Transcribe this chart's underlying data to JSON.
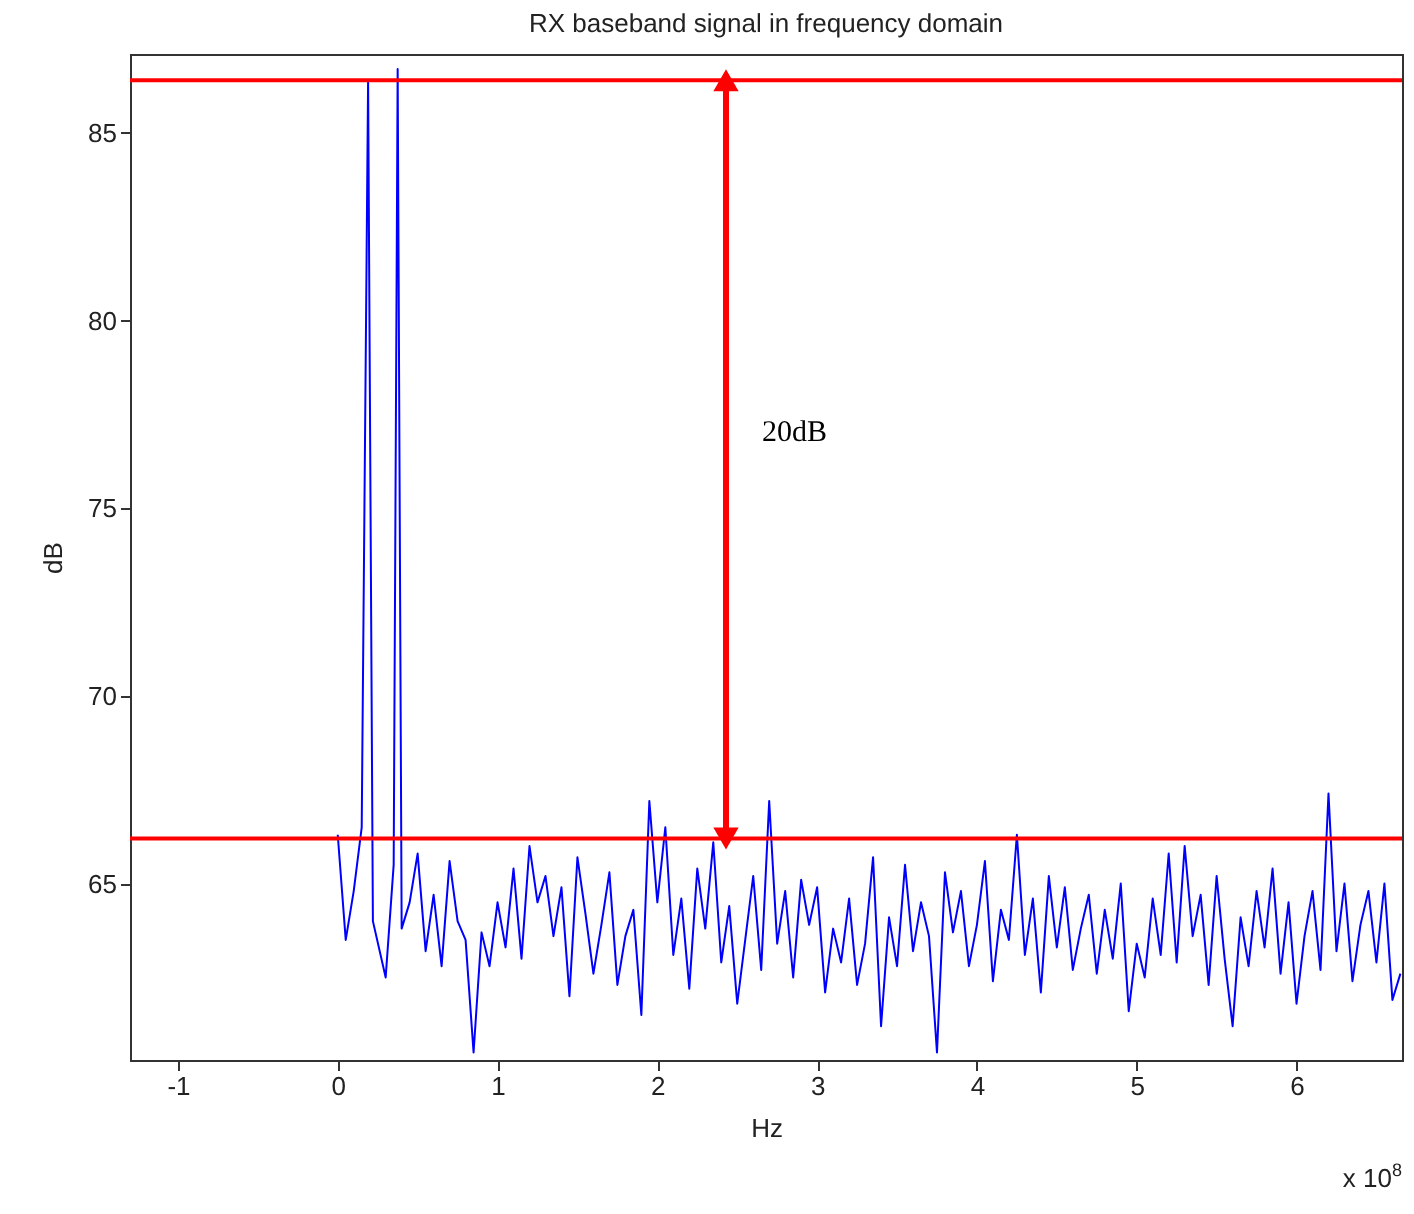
{
  "chart_data": {
    "type": "line",
    "title": "RX baseband signal in frequency domain",
    "xlabel": "Hz",
    "ylabel": "dB",
    "xlim": [
      -1.3,
      6.66
    ],
    "xticks": [
      -1,
      0,
      1,
      2,
      3,
      4,
      5,
      6
    ],
    "ylim": [
      60.3,
      87.1
    ],
    "yticks": [
      65,
      70,
      75,
      80,
      85
    ],
    "grid": false,
    "marker": "none",
    "line_style": "solid",
    "ref_lines": [
      {
        "axis": "y",
        "value": 86.4,
        "color": "#ff0000"
      },
      {
        "axis": "y",
        "value": 66.2,
        "color": "#ff0000"
      }
    ],
    "annotations": [
      "20dB",
      "x 10$^{8}$"
    ],
    "series": [
      {
        "color": "#0000ff",
        "x": [
          0,
          0.05,
          0.1,
          0.15,
          0.19,
          0.22,
          0.3,
          0.35,
          0.375,
          0.4,
          0.45,
          0.5,
          0.55,
          0.6,
          0.65,
          0.7,
          0.75,
          0.8,
          0.85,
          0.9,
          0.95,
          1.0,
          1.05,
          1.1,
          1.15,
          1.2,
          1.25,
          1.3,
          1.35,
          1.4,
          1.45,
          1.5,
          1.55,
          1.6,
          1.65,
          1.7,
          1.75,
          1.8,
          1.85,
          1.9,
          1.95,
          2.0,
          2.05,
          2.1,
          2.15,
          2.2,
          2.25,
          2.3,
          2.35,
          2.4,
          2.45,
          2.5,
          2.55,
          2.6,
          2.65,
          2.7,
          2.75,
          2.8,
          2.85,
          2.9,
          2.95,
          3.0,
          3.05,
          3.1,
          3.15,
          3.2,
          3.25,
          3.3,
          3.35,
          3.4,
          3.45,
          3.5,
          3.55,
          3.6,
          3.65,
          3.7,
          3.75,
          3.8,
          3.85,
          3.9,
          3.95,
          4.0,
          4.05,
          4.1,
          4.15,
          4.2,
          4.25,
          4.3,
          4.35,
          4.4,
          4.45,
          4.5,
          4.55,
          4.6,
          4.65,
          4.7,
          4.75,
          4.8,
          4.85,
          4.9,
          4.95,
          5.0,
          5.05,
          5.1,
          5.15,
          5.2,
          5.25,
          5.3,
          5.35,
          5.4,
          5.45,
          5.5,
          5.55,
          5.6,
          5.65,
          5.7,
          5.75,
          5.8,
          5.85,
          5.9,
          5.95,
          6.0,
          6.05,
          6.1,
          6.15,
          6.2,
          6.25,
          6.3,
          6.35,
          6.4,
          6.45,
          6.5,
          6.55,
          6.6,
          6.65
        ],
        "values": [
          66.3,
          63.5,
          64.8,
          66.5,
          86.4,
          64,
          62.5,
          65.5,
          86.7,
          63.8,
          64.5,
          65.8,
          63.2,
          64.7,
          62.8,
          65.6,
          64,
          63.5,
          60.5,
          63.7,
          62.8,
          64.5,
          63.3,
          65.4,
          63,
          66,
          64.5,
          65.2,
          63.6,
          64.9,
          62,
          65.7,
          64.2,
          62.6,
          63.9,
          65.3,
          62.3,
          63.6,
          64.3,
          61.5,
          67.2,
          64.5,
          66.5,
          63.1,
          64.6,
          62.2,
          65.4,
          63.8,
          66.1,
          62.9,
          64.4,
          61.8,
          63.5,
          65.2,
          62.7,
          67.2,
          63.4,
          64.8,
          62.5,
          65.1,
          63.9,
          64.9,
          62.1,
          63.8,
          62.9,
          64.6,
          62.3,
          63.4,
          65.7,
          61.2,
          64.1,
          62.8,
          65.5,
          63.2,
          64.5,
          63.6,
          60.5,
          65.3,
          63.7,
          64.8,
          62.8,
          63.9,
          65.6,
          62.4,
          64.3,
          63.5,
          66.3,
          63.1,
          64.6,
          62.1,
          65.2,
          63.3,
          64.9,
          62.7,
          63.8,
          64.7,
          62.6,
          64.3,
          63,
          65,
          61.6,
          63.4,
          62.5,
          64.6,
          63.1,
          65.8,
          62.9,
          66,
          63.6,
          64.7,
          62.3,
          65.2,
          63,
          61.2,
          64.1,
          62.8,
          64.8,
          63.3,
          65.4,
          62.6,
          64.5,
          61.8,
          63.6,
          64.8,
          62.7,
          67.4,
          63.2,
          65,
          62.4,
          63.9,
          64.8,
          62.9,
          65,
          61.9,
          62.6
        ]
      }
    ]
  }
}
